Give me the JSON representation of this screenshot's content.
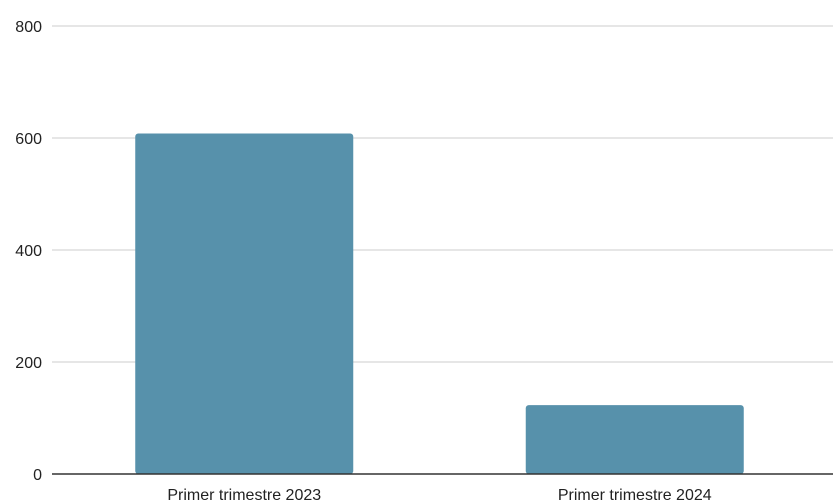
{
  "chart_data": {
    "type": "bar",
    "categories": [
      "Primer trimestre 2023",
      "Primer trimestre 2024"
    ],
    "values": [
      608,
      123
    ],
    "title": "",
    "xlabel": "",
    "ylabel": "",
    "ylim": [
      0,
      800
    ],
    "yticks": [
      "0",
      "200",
      "400",
      "600",
      "800"
    ],
    "grid": true,
    "legend": "none",
    "bar_color": "#5791AB",
    "grid_color": "#cccccc",
    "axis_color": "#333333"
  }
}
